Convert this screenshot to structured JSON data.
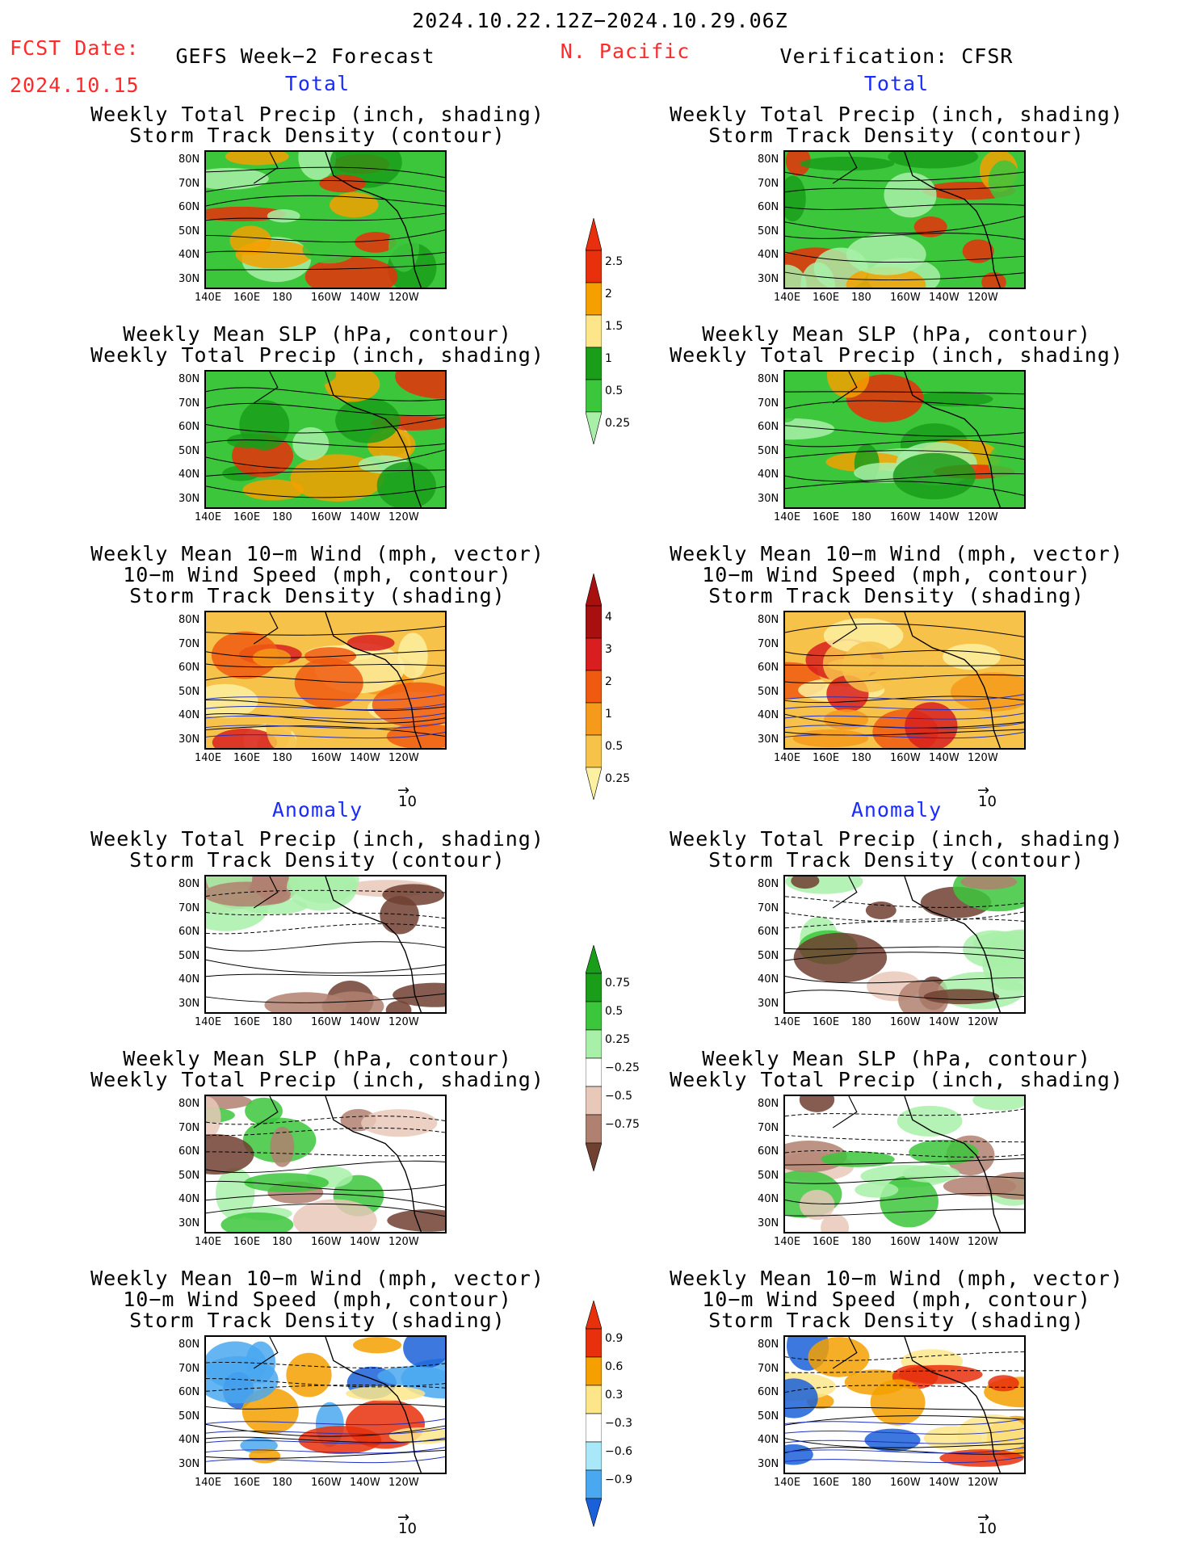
{
  "header": {
    "period": "2024.10.22.12Z−2024.10.29.06Z",
    "fcst_label": "FCST Date:",
    "fcst_date": "2024.10.15",
    "left_title": "GEFS Week−2 Forecast",
    "region": "N. Pacific",
    "right_title": "Verification: CFSR"
  },
  "sections": {
    "total": "Total",
    "anomaly": "Anomaly"
  },
  "panel_titles": {
    "precip_track": [
      "Weekly Total Precip (inch, shading)",
      "Storm Track Density (contour)"
    ],
    "slp_precip": [
      "Weekly Mean SLP (hPa, contour)",
      "Weekly Total Precip (inch, shading)"
    ],
    "wind": [
      "Weekly Mean 10−m Wind (mph, vector)",
      "10−m Wind Speed (mph, contour)",
      "Storm Track Density (shading)"
    ]
  },
  "axes": {
    "lat": [
      "80N",
      "70N",
      "60N",
      "50N",
      "40N",
      "30N"
    ],
    "lon": [
      "140E",
      "160E",
      "180",
      "160W",
      "140W",
      "120W"
    ]
  },
  "vector_ref": "10",
  "colorbars": {
    "precip": {
      "labels": [
        "2.5",
        "2",
        "1.5",
        "1",
        "0.5",
        "0.25"
      ],
      "colors": [
        "#e8300c",
        "#f5a000",
        "#fde68a",
        "#1a9e1a",
        "#3cc63c",
        "#a8f0a8"
      ]
    },
    "track": {
      "labels": [
        "4",
        "3",
        "2",
        "1",
        "0.5",
        "0.25"
      ],
      "colors": [
        "#a81010",
        "#d81e1e",
        "#f05a10",
        "#f59a1a",
        "#f7c24a",
        "#fdf0a0"
      ]
    },
    "precip_anom": {
      "labels": [
        "0.75",
        "0.5",
        "0.25",
        "−0.25",
        "−0.5",
        "−0.75"
      ],
      "colors": [
        "#1a9e1a",
        "#3cc63c",
        "#a8f0a8",
        "#ffffff",
        "#e8c8b8",
        "#b08070",
        "#704030"
      ]
    },
    "track_anom": {
      "labels": [
        "0.9",
        "0.6",
        "0.3",
        "−0.3",
        "−0.6",
        "−0.9"
      ],
      "colors": [
        "#e8300c",
        "#f5a000",
        "#fde68a",
        "#ffffff",
        "#a8e8f8",
        "#4aa8f0",
        "#1a60d8"
      ]
    }
  }
}
